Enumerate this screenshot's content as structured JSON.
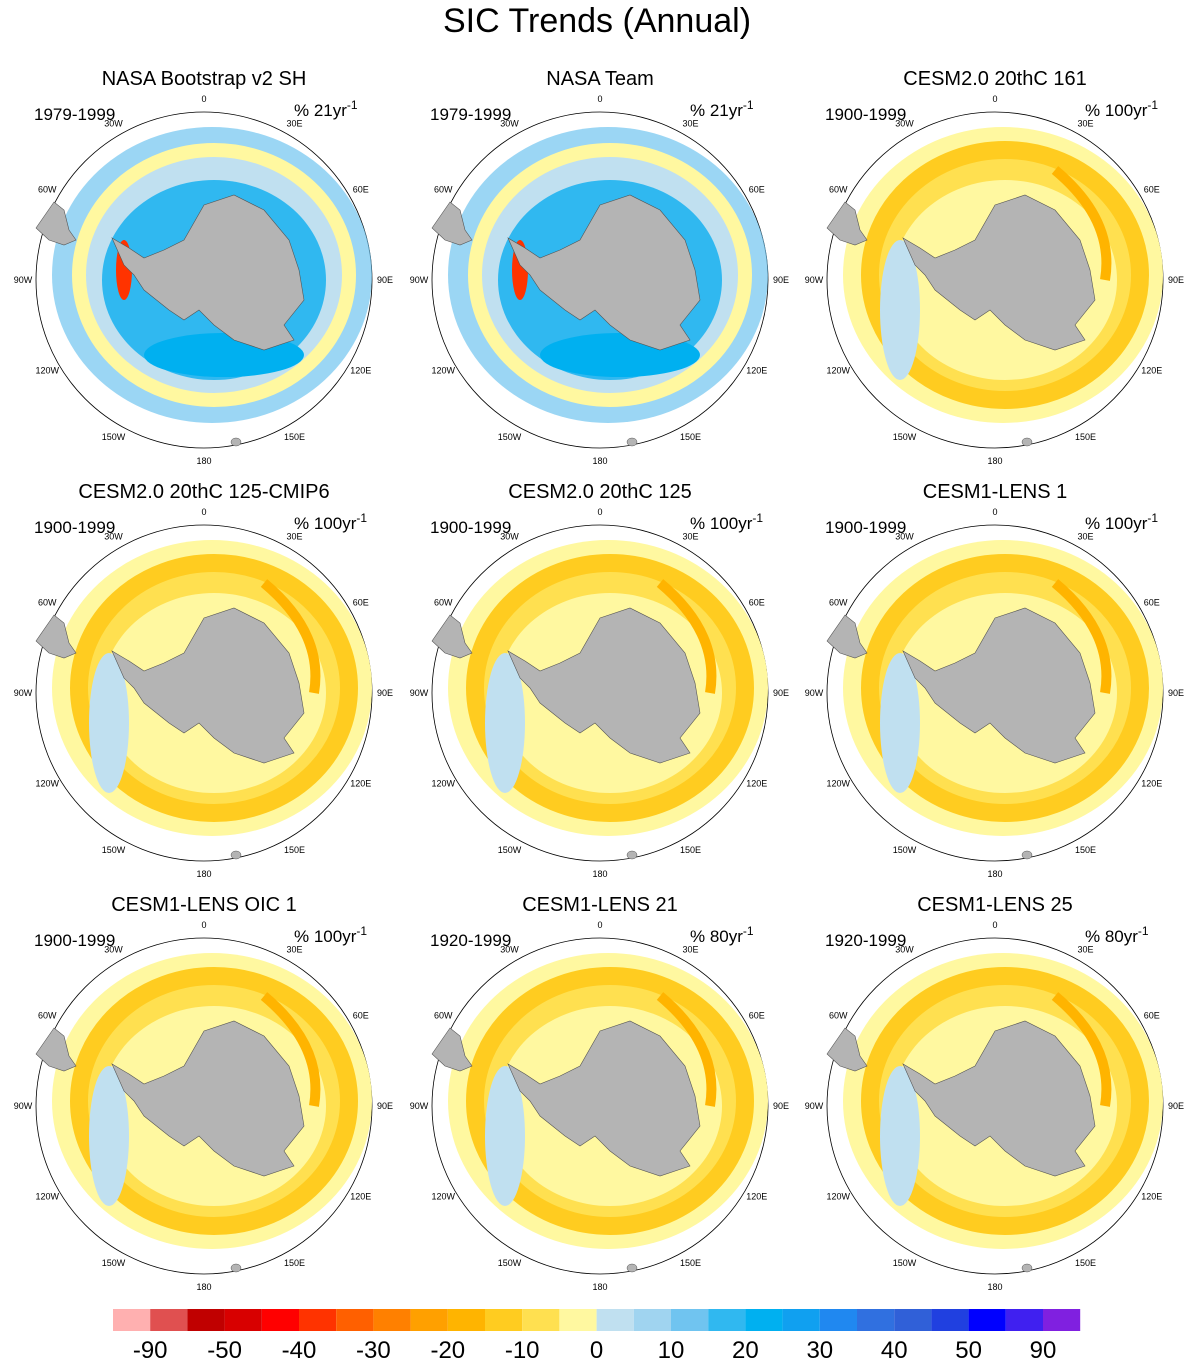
{
  "title": "SIC Trends (Annual)",
  "longitude_labels": [
    "0",
    "30E",
    "60E",
    "90E",
    "120E",
    "150E",
    "180",
    "150W",
    "120W",
    "90W",
    "60W",
    "30W"
  ],
  "panels": [
    {
      "title": "NASA Bootstrap v2 SH",
      "period": "1979-1999",
      "units": "% 21yr",
      "exponent": "-1"
    },
    {
      "title": "NASA Team",
      "period": "1979-1999",
      "units": "% 21yr",
      "exponent": "-1"
    },
    {
      "title": "CESM2.0 20thC 161",
      "period": "1900-1999",
      "units": "% 100yr",
      "exponent": "-1"
    },
    {
      "title": "CESM2.0 20thC 125-CMIP6",
      "period": "1900-1999",
      "units": "% 100yr",
      "exponent": "-1"
    },
    {
      "title": "CESM2.0 20thC 125",
      "period": "1900-1999",
      "units": "% 100yr",
      "exponent": "-1"
    },
    {
      "title": "CESM1-LENS 1",
      "period": "1900-1999",
      "units": "% 100yr",
      "exponent": "-1"
    },
    {
      "title": "CESM1-LENS OIC 1",
      "period": "1900-1999",
      "units": "% 100yr",
      "exponent": "-1"
    },
    {
      "title": "CESM1-LENS 21",
      "period": "1920-1999",
      "units": "% 80yr",
      "exponent": "-1"
    },
    {
      "title": "CESM1-LENS 25",
      "period": "1920-1999",
      "units": "% 80yr",
      "exponent": "-1"
    }
  ],
  "colorbar": {
    "labels": [
      -90,
      -50,
      -40,
      -30,
      -20,
      -10,
      0,
      10,
      20,
      30,
      40,
      50,
      90
    ],
    "colors": [
      "#ffb0b0",
      "#e05050",
      "#c00000",
      "#d80000",
      "#ff0000",
      "#ff3300",
      "#ff6000",
      "#ff8000",
      "#ffa000",
      "#ffb400",
      "#ffcc20",
      "#ffe050",
      "#fff8a0",
      "#c0e0f0",
      "#a0d4f0",
      "#70c4f0",
      "#30b8f0",
      "#00b0f0",
      "#10a0f0",
      "#2088f0",
      "#3070e0",
      "#3060d8",
      "#2040e0",
      "#0000ff",
      "#4020f0",
      "#8020e0"
    ]
  }
}
